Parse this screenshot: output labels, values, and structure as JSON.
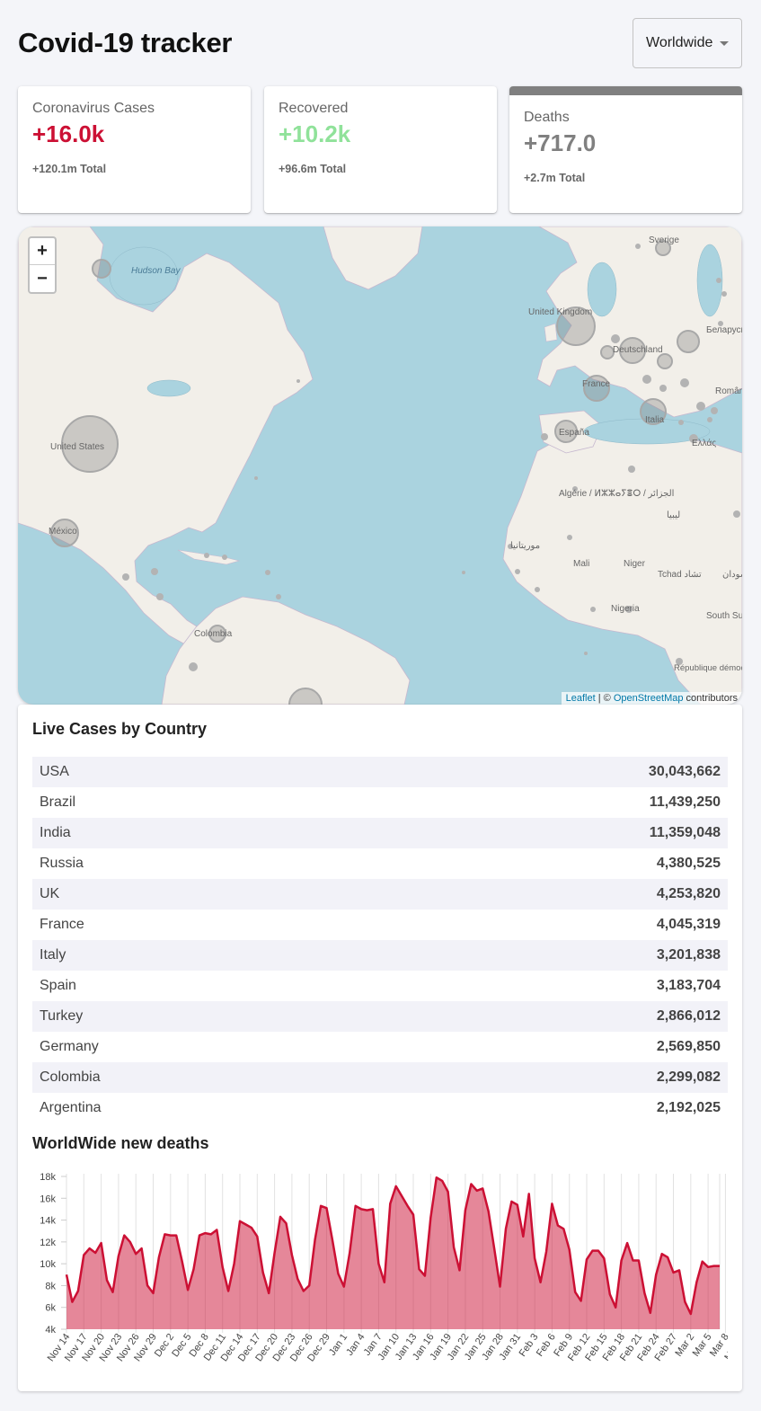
{
  "header": {
    "title": "Covid-19 tracker",
    "country_select": "Worldwide"
  },
  "cards": {
    "cases": {
      "title": "Coronavirus Cases",
      "value": "+16.0k",
      "total": "+120.1m Total",
      "color": "#cc1034"
    },
    "recovered": {
      "title": "Recovered",
      "value": "+10.2k",
      "total": "+96.6m Total",
      "color": "#7dd71d"
    },
    "deaths": {
      "title": "Deaths",
      "value": "+717.0",
      "total": "+2.7m Total",
      "color": "#808080"
    }
  },
  "map": {
    "zoom_in": "+",
    "zoom_out": "−",
    "labels": {
      "hudson_bay": "Hudson Bay",
      "sverige": "Sverige",
      "uk": "United Kingdom",
      "belarus": "Беларусь",
      "deutschland": "Deutschland",
      "france": "France",
      "romania": "România",
      "espana": "España",
      "italia": "Italia",
      "greece": "Ελλάς",
      "usa": "United States",
      "mexico": "México",
      "algerie": "Algérie / ⵍⵣⵣⴰⵢⴻⵔ / الجزائر",
      "libya": "ليبيا",
      "mauritania": "موريتانيا",
      "mali": "Mali",
      "niger": "Niger",
      "tchad": "Tchad تشاد",
      "sudan": "السودان",
      "nigeria": "Nigeria",
      "south_sudan": "South Sudan",
      "colombia": "Colombia",
      "drc": "République démocratique du Congo"
    },
    "attribution": {
      "leaflet": "Leaflet",
      "sep": " | © ",
      "osm": "OpenStreetMap",
      "contrib": " contributors"
    }
  },
  "live_cases": {
    "title": "Live Cases by Country",
    "rows": [
      {
        "country": "USA",
        "cases": "30,043,662"
      },
      {
        "country": "Brazil",
        "cases": "11,439,250"
      },
      {
        "country": "India",
        "cases": "11,359,048"
      },
      {
        "country": "Russia",
        "cases": "4,380,525"
      },
      {
        "country": "UK",
        "cases": "4,253,820"
      },
      {
        "country": "France",
        "cases": "4,045,319"
      },
      {
        "country": "Italy",
        "cases": "3,201,838"
      },
      {
        "country": "Spain",
        "cases": "3,183,704"
      },
      {
        "country": "Turkey",
        "cases": "2,866,012"
      },
      {
        "country": "Germany",
        "cases": "2,569,850"
      },
      {
        "country": "Colombia",
        "cases": "2,299,082"
      },
      {
        "country": "Argentina",
        "cases": "2,192,025"
      }
    ]
  },
  "chart_title": "WorldWide new deaths",
  "chart_data": {
    "type": "area",
    "x_tick_labels": [
      "Nov 14",
      "Nov 17",
      "Nov 20",
      "Nov 23",
      "Nov 26",
      "Nov 29",
      "Dec 2",
      "Dec 5",
      "Dec 8",
      "Dec 11",
      "Dec 14",
      "Dec 17",
      "Dec 20",
      "Dec 23",
      "Dec 26",
      "Dec 29",
      "Jan 1",
      "Jan 4",
      "Jan 7",
      "Jan 10",
      "Jan 13",
      "Jan 16",
      "Jan 19",
      "Jan 22",
      "Jan 25",
      "Jan 28",
      "Jan 31",
      "Feb 3",
      "Feb 6",
      "Feb 9",
      "Feb 12",
      "Feb 15",
      "Feb 18",
      "Feb 21",
      "Feb 24",
      "Feb 27",
      "Mar 2",
      "Mar 5",
      "Mar 8",
      "Mar 11"
    ],
    "y_tick_labels": [
      "4k",
      "6k",
      "8k",
      "10k",
      "12k",
      "14k",
      "16k",
      "18k"
    ],
    "ylim": [
      4000,
      18000
    ],
    "x_range": [
      "Nov 14",
      "Mar 12"
    ],
    "grid": "vertical",
    "line_color": "#cc1034",
    "fill_color": "rgba(204,16,52,0.5)",
    "series": [
      {
        "values": [
          9000,
          6500,
          7500,
          10800,
          11400,
          11000,
          11900,
          8500,
          7400,
          10700,
          12600,
          12000,
          10900,
          11400,
          8000,
          7300,
          10600,
          12700,
          12600,
          12600,
          10200,
          7600,
          9500,
          12600,
          12800,
          12700,
          13100,
          9700,
          7500,
          10000,
          13900,
          13600,
          13300,
          12500,
          9200,
          7300,
          11000,
          14300,
          13700,
          10800,
          8600,
          7500,
          8000,
          12200,
          15300,
          15100,
          12200,
          9100,
          7900,
          11000,
          15300,
          15000,
          14900,
          15000,
          10000,
          8300,
          15500,
          17100,
          16200,
          15300,
          14500,
          9500,
          8900,
          14200,
          17900,
          17600,
          16600,
          11500,
          9400,
          14900,
          17300,
          16700,
          16900,
          14800,
          11400,
          7900,
          13200,
          15700,
          15400,
          12500,
          16400,
          10500,
          8300,
          11100,
          15500,
          13500,
          13200,
          11300,
          7400,
          6600,
          10400,
          11200,
          11200,
          10500,
          7200,
          6000,
          10300,
          11900,
          10300,
          10300,
          7300,
          5500,
          9000,
          10900,
          10600,
          9200,
          9400,
          6500,
          5400,
          8300,
          10200,
          9700,
          9800,
          9800
        ]
      }
    ]
  }
}
